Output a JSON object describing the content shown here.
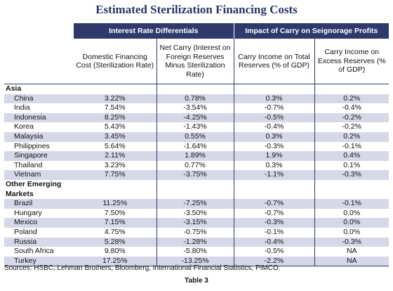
{
  "title": "Estimated Sterilization Financing Costs",
  "group_headers": [
    "Interest Rate Differentials",
    "Impact of Carry on Seignorage Profits"
  ],
  "column_headers": [
    "Domestic Financing Cost (Sterilization Rate)",
    "Net Carry (Interest on Foreign Reserves Minus Sterilization Rate)",
    "Carry Income on Total Reserves (% of GDP)",
    "Carry Income on Excess Reserves (% of GDP)"
  ],
  "sections": [
    {
      "name": "Asia",
      "rows": [
        {
          "country": "China",
          "domestic": "3.22%",
          "net_carry": "0.78%",
          "total": "0.3%",
          "excess": "0.2%"
        },
        {
          "country": "India",
          "domestic": "7.54%",
          "net_carry": "-3.54%",
          "total": "-0.7%",
          "excess": "-0.4%"
        },
        {
          "country": "Indonesia",
          "domestic": "8.25%",
          "net_carry": "-4.25%",
          "total": "-0.5%",
          "excess": "-0.2%"
        },
        {
          "country": "Korea",
          "domestic": "5.43%",
          "net_carry": "-1.43%",
          "total": "-0.4%",
          "excess": "-0.2%"
        },
        {
          "country": "Malaysia",
          "domestic": "3.45%",
          "net_carry": "0.55%",
          "total": "0.3%",
          "excess": "0.2%"
        },
        {
          "country": "Philippines",
          "domestic": "5.64%",
          "net_carry": "-1.64%",
          "total": "-0.3%",
          "excess": "-0.1%"
        },
        {
          "country": "Singapore",
          "domestic": "2.11%",
          "net_carry": "1.89%",
          "total": "1.9%",
          "excess": "0.4%"
        },
        {
          "country": "Thailand",
          "domestic": "3.23%",
          "net_carry": "0.77%",
          "total": "0.3%",
          "excess": "0.1%"
        },
        {
          "country": "Vietnam",
          "domestic": "7.75%",
          "net_carry": "-3.75%",
          "total": "-1.1%",
          "excess": "-0.3%"
        }
      ]
    },
    {
      "name": "Other Emerging Markets",
      "rows": [
        {
          "country": "Brazil",
          "domestic": "11.25%",
          "net_carry": "-7.25%",
          "total": "-0.7%",
          "excess": "-0.1%"
        },
        {
          "country": "Hungary",
          "domestic": "7.50%",
          "net_carry": "-3.50%",
          "total": "-0.7%",
          "excess": "0.0%"
        },
        {
          "country": "Mexico",
          "domestic": "7.15%",
          "net_carry": "-3.15%",
          "total": "-0.3%",
          "excess": "0.0%"
        },
        {
          "country": "Poland",
          "domestic": "4.75%",
          "net_carry": "-0.75%",
          "total": "-0.1%",
          "excess": "0.0%"
        },
        {
          "country": "Russia",
          "domestic": "5.28%",
          "net_carry": "-1.28%",
          "total": "-0.4%",
          "excess": "-0.3%"
        },
        {
          "country": "South Africa",
          "domestic": "9.80%",
          "net_carry": "-5.80%",
          "total": "-0.5%",
          "excess": "NA"
        },
        {
          "country": "Turkey",
          "domestic": "17.25%",
          "net_carry": "-13.25%",
          "total": "-2.2%",
          "excess": "NA"
        }
      ]
    }
  ],
  "sources": "Sources: HSBC, Lehman Brothers, Bloomberg, International Financial Statistics, PIMCO.",
  "caption": "Table 3",
  "colors": {
    "header": "#2d3a6b",
    "shade": "#d6d8e8",
    "title": "#2a3566"
  }
}
